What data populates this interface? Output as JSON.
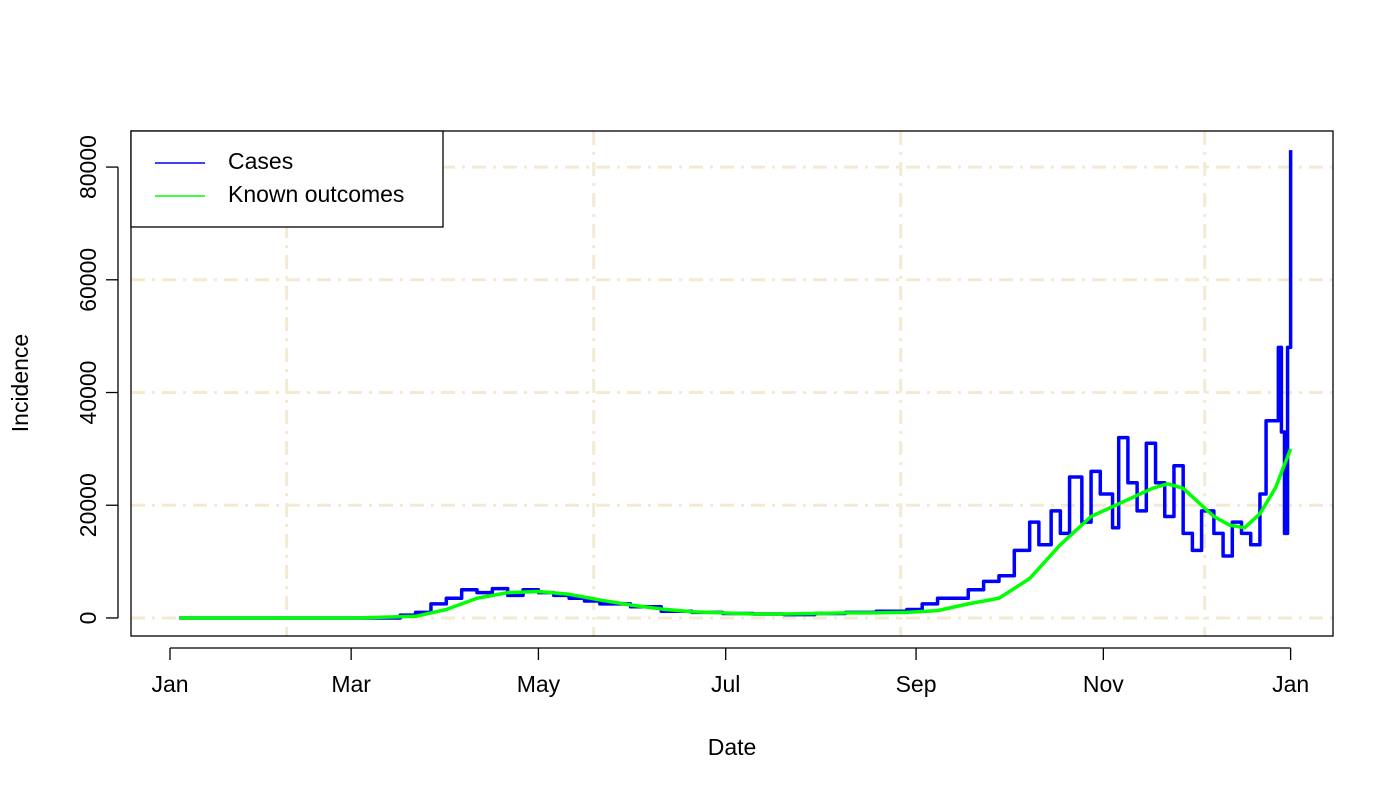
{
  "chart_data": {
    "type": "line",
    "x_label": "Date",
    "y_label": "Incidence",
    "series": [
      {
        "name": "Cases",
        "color": "#0000ff",
        "style": "step",
        "x": [
          3,
          60,
          75,
          80,
          85,
          90,
          95,
          100,
          105,
          110,
          115,
          120,
          125,
          130,
          135,
          140,
          150,
          160,
          170,
          180,
          190,
          200,
          210,
          220,
          230,
          240,
          245,
          250,
          255,
          260,
          265,
          270,
          275,
          280,
          283,
          287,
          290,
          293,
          297,
          300,
          303,
          307,
          309,
          312,
          315,
          318,
          321,
          324,
          327,
          330,
          333,
          336,
          340,
          343,
          346,
          349,
          352,
          355,
          357,
          359,
          361,
          362,
          363,
          364,
          365
        ],
        "values": [
          0,
          0,
          500,
          1000,
          2500,
          3500,
          5000,
          4500,
          5200,
          4000,
          5000,
          4500,
          4000,
          3500,
          3000,
          2500,
          2000,
          1200,
          1000,
          800,
          700,
          600,
          800,
          1000,
          1200,
          1500,
          2500,
          3500,
          3500,
          5000,
          6500,
          7500,
          12000,
          17000,
          13000,
          19000,
          15000,
          25000,
          17000,
          26000,
          22000,
          16000,
          32000,
          24000,
          19000,
          31000,
          24000,
          18000,
          27000,
          15000,
          12000,
          19000,
          15000,
          11000,
          17000,
          15000,
          13000,
          22000,
          35000,
          35000,
          48000,
          33000,
          15000,
          48000,
          83000
        ]
      },
      {
        "name": "Known outcomes",
        "color": "#00ff00",
        "style": "line",
        "x": [
          3,
          60,
          80,
          90,
          100,
          110,
          120,
          130,
          140,
          150,
          160,
          170,
          180,
          190,
          200,
          210,
          220,
          230,
          240,
          250,
          260,
          270,
          280,
          290,
          300,
          310,
          320,
          325,
          330,
          340,
          345,
          350,
          355,
          360,
          365
        ],
        "values": [
          0,
          0,
          300,
          1500,
          3500,
          4500,
          4700,
          4200,
          3200,
          2300,
          1600,
          1100,
          900,
          700,
          700,
          800,
          900,
          900,
          1000,
          1300,
          2500,
          3500,
          7000,
          13000,
          18000,
          20500,
          23000,
          23800,
          23000,
          18000,
          16500,
          16000,
          18500,
          23000,
          30000
        ]
      }
    ],
    "xlim": [
      -12.7,
      378.8
    ],
    "xticks": [
      {
        "value": 0,
        "label": "Jan"
      },
      {
        "value": 59,
        "label": "Mar"
      },
      {
        "value": 120,
        "label": "May"
      },
      {
        "value": 181,
        "label": "Jul"
      },
      {
        "value": 243,
        "label": "Sep"
      },
      {
        "value": 304,
        "label": "Nov"
      },
      {
        "value": 365,
        "label": "Jan"
      }
    ],
    "ylim": [
      -3200,
      86400
    ],
    "yticks": [
      0,
      20000,
      40000,
      60000,
      80000
    ],
    "xgrid": [
      38,
      138,
      238,
      337
    ],
    "grid": true,
    "grid_color": "#f3ead3",
    "legend": "top-left"
  }
}
